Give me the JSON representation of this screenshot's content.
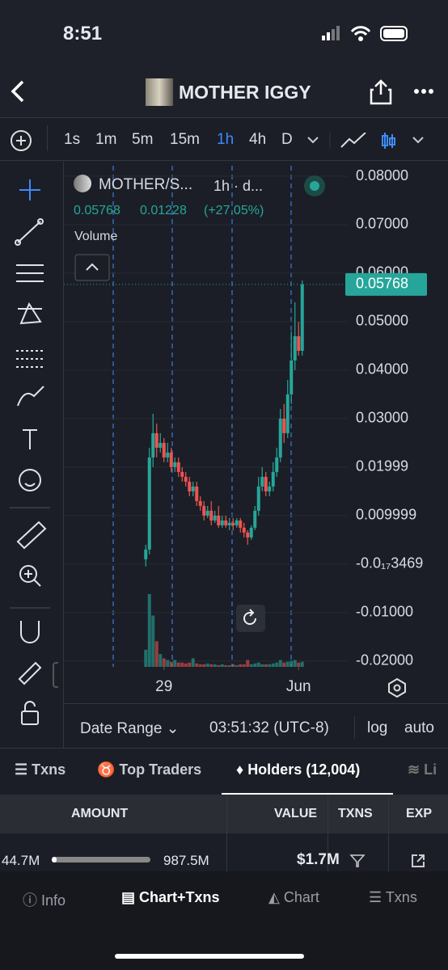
{
  "status": {
    "time": "8:51"
  },
  "header": {
    "title": "MOTHER IGGY"
  },
  "toolbar": {
    "intervals": [
      "1s",
      "1m",
      "5m",
      "15m",
      "1h",
      "4h",
      "D"
    ]
  },
  "chart_data": {
    "type": "candlestick",
    "symbol": "MOTHER/S...",
    "interval": "1h · d...",
    "change": "0.01228",
    "change_pct": "(+27.05%)",
    "volume_label": "Volume",
    "open": [
      0.001,
      0.003,
      0.022,
      0.027,
      0.024,
      0.025,
      0.022,
      0.023,
      0.02,
      0.021,
      0.019,
      0.018,
      0.017,
      0.015,
      0.016,
      0.013,
      0.012,
      0.01,
      0.011,
      0.009,
      0.01,
      0.008,
      0.009,
      0.008,
      0.0085,
      0.008,
      0.009,
      0.0075,
      0.0065,
      0.0055,
      0.0075,
      0.011,
      0.016,
      0.018,
      0.015,
      0.016,
      0.019,
      0.022,
      0.03,
      0.027,
      0.035,
      0.042,
      0.047,
      0.044
    ],
    "high": [
      0.004,
      0.024,
      0.031,
      0.029,
      0.027,
      0.026,
      0.025,
      0.024,
      0.022,
      0.022,
      0.02,
      0.019,
      0.018,
      0.017,
      0.017,
      0.014,
      0.013,
      0.012,
      0.013,
      0.011,
      0.012,
      0.01,
      0.01,
      0.0095,
      0.0095,
      0.0095,
      0.0095,
      0.0085,
      0.007,
      0.008,
      0.012,
      0.018,
      0.02,
      0.019,
      0.017,
      0.021,
      0.024,
      0.032,
      0.033,
      0.038,
      0.048,
      0.054,
      0.05,
      0.0585
    ],
    "low": [
      -0.0005,
      0.002,
      0.02,
      0.022,
      0.023,
      0.021,
      0.021,
      0.019,
      0.019,
      0.018,
      0.017,
      0.016,
      0.014,
      0.014,
      0.012,
      0.011,
      0.009,
      0.0095,
      0.008,
      0.0085,
      0.0075,
      0.0075,
      0.0075,
      0.007,
      0.007,
      0.0075,
      0.0065,
      0.0055,
      0.004,
      0.005,
      0.007,
      0.01,
      0.015,
      0.014,
      0.014,
      0.015,
      0.018,
      0.021,
      0.025,
      0.026,
      0.033,
      0.04,
      0.043,
      0.043
    ],
    "close": [
      0.003,
      0.022,
      0.027,
      0.024,
      0.025,
      0.022,
      0.023,
      0.02,
      0.021,
      0.019,
      0.018,
      0.017,
      0.015,
      0.016,
      0.013,
      0.012,
      0.01,
      0.011,
      0.009,
      0.01,
      0.008,
      0.009,
      0.008,
      0.0085,
      0.008,
      0.009,
      0.0075,
      0.0065,
      0.0055,
      0.0075,
      0.011,
      0.016,
      0.018,
      0.015,
      0.016,
      0.019,
      0.022,
      0.03,
      0.027,
      0.035,
      0.042,
      0.047,
      0.044,
      0.05768
    ],
    "volume": [
      20,
      85,
      60,
      30,
      15,
      10,
      8,
      6,
      8,
      5,
      5,
      4,
      5,
      10,
      4,
      3,
      3,
      4,
      3,
      3,
      2,
      3,
      2,
      2,
      3,
      2,
      3,
      3,
      8,
      3,
      4,
      5,
      3,
      3,
      3,
      4,
      5,
      8,
      5,
      6,
      7,
      8,
      5,
      6
    ],
    "up_color": "#26a69a",
    "down_color": "#ef5350",
    "ylim": [
      -0.0212,
      0.08217
    ],
    "yticks": [
      {
        "value": 0.08,
        "label": "0.08000"
      },
      {
        "value": 0.07,
        "label": "0.07000"
      },
      {
        "value": 0.06,
        "label": "0.06000"
      },
      {
        "value": 0.05,
        "label": "0.05000"
      },
      {
        "value": 0.04,
        "label": "0.04000"
      },
      {
        "value": 0.03,
        "label": "0.03000"
      },
      0.01999,
      0.009999,
      {
        "value": -3.469e-18,
        "label": "-0.0₁₇3469"
      },
      {
        "value": -0.01,
        "label": "-0.01000"
      },
      {
        "value": -0.02,
        "label": "-0.02000"
      }
    ],
    "xlim": [
      -22.5,
      55.5
    ],
    "xticks": [
      {
        "value": 5,
        "label": "29"
      },
      {
        "value": 42,
        "label": "Jun"
      }
    ],
    "grid": true
  },
  "footer": {
    "date_range": "Date Range",
    "clock": "03:51:32 (UTC-8)",
    "log": "log",
    "auto": "auto"
  },
  "tabs": [
    "Txns",
    "Top Traders",
    "Holders (12,004)",
    "Li"
  ],
  "table": {
    "headers": [
      "AMOUNT",
      "VALUE",
      "TXNS",
      "EXP"
    ],
    "rows": [
      [
        "44.7M",
        "987.5M",
        "$1.7M"
      ]
    ]
  },
  "nav": [
    "Info",
    "Chart+Txns",
    "Chart",
    "Txns"
  ]
}
